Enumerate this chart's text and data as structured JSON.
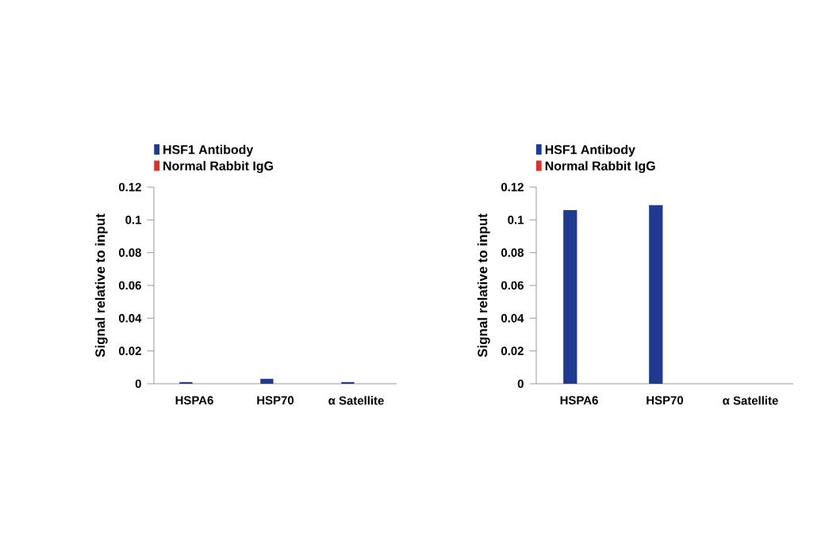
{
  "chart_data": [
    {
      "type": "bar",
      "ylabel": "Signal relative to input",
      "categories": [
        "HSPA6",
        "HSP70",
        "α Satellite"
      ],
      "series": [
        {
          "name": "HSF1 Antibody",
          "color": "#1f3a8f",
          "values": [
            0.001,
            0.003,
            0.001
          ]
        },
        {
          "name": "Normal Rabbit IgG",
          "color": "#d9342b",
          "values": [
            0,
            0,
            0
          ]
        }
      ],
      "ylim": [
        0,
        0.12
      ],
      "yticks": [
        0,
        0.02,
        0.04,
        0.06,
        0.08,
        0.1,
        0.12
      ],
      "legend": "top",
      "grid": false
    },
    {
      "type": "bar",
      "ylabel": "Signal relative to input",
      "categories": [
        "HSPA6",
        "HSP70",
        "α Satellite"
      ],
      "series": [
        {
          "name": "HSF1 Antibody",
          "color": "#1f3a8f",
          "values": [
            0.106,
            0.109,
            0
          ]
        },
        {
          "name": "Normal Rabbit IgG",
          "color": "#d9342b",
          "values": [
            0,
            0,
            0
          ]
        }
      ],
      "ylim": [
        0,
        0.12
      ],
      "yticks": [
        0,
        0.02,
        0.04,
        0.06,
        0.08,
        0.1,
        0.12
      ],
      "legend": "top",
      "grid": false
    }
  ]
}
